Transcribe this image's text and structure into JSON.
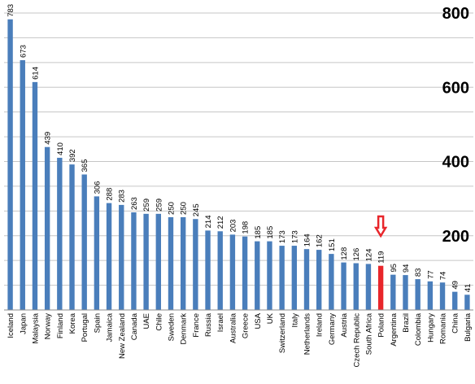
{
  "chart_data": {
    "type": "bar",
    "categories": [
      "Iceland",
      "Japan",
      "Malaysia",
      "Norway",
      "Finland",
      "Korea",
      "Portugal",
      "Spain",
      "Jamaica",
      "New Zealand",
      "Canada",
      "UAE",
      "Chile",
      "Sweden",
      "Denmark",
      "France",
      "Russia",
      "Israel",
      "Australia",
      "Greece",
      "USA",
      "UK",
      "Switzerland",
      "Italy",
      "Netherlands",
      "Ireland",
      "Germany",
      "Austria",
      "Czech Republic",
      "South Africa",
      "Poland",
      "Argentina",
      "Brazil",
      "Colombia",
      "Hungary",
      "Romania",
      "China",
      "Bulgaria"
    ],
    "values": [
      783,
      673,
      614,
      439,
      410,
      392,
      365,
      306,
      288,
      283,
      263,
      259,
      259,
      250,
      250,
      245,
      214,
      212,
      203,
      198,
      185,
      185,
      173,
      173,
      164,
      162,
      151,
      128,
      126,
      124,
      119,
      95,
      94,
      83,
      77,
      74,
      49,
      41
    ],
    "ylim": [
      0,
      800
    ],
    "yticks_labeled": [
      200,
      400,
      600,
      800
    ],
    "ygrid_step": 66.7,
    "grid": true,
    "legend": "none",
    "highlight": {
      "category": "Poland",
      "color": "#e8262b",
      "marker": "down-arrow"
    },
    "colors": {
      "bar": "#4a7ebb",
      "highlight": "#e8262b",
      "grid": "#c6c6c6",
      "axis": "#8c8c8c"
    }
  }
}
